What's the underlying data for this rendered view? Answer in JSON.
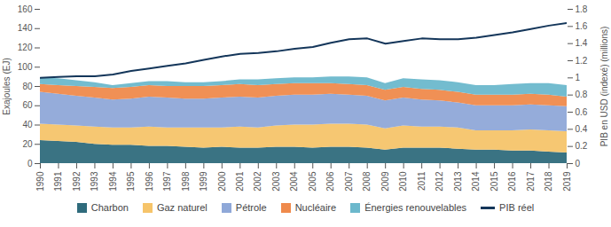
{
  "chart_data": {
    "type": "area",
    "stacked": true,
    "ylabel": "Exajoules (EJ)",
    "y2label": "PIB en USD (indexé) (millions)",
    "x": [
      1990,
      1991,
      1992,
      1993,
      1994,
      1995,
      1996,
      1997,
      1998,
      1999,
      2000,
      2001,
      2002,
      2003,
      2004,
      2005,
      2006,
      2007,
      2008,
      2009,
      2010,
      2011,
      2012,
      2013,
      2014,
      2015,
      2016,
      2017,
      2018,
      2019
    ],
    "xlim": [
      1990,
      2019
    ],
    "xticks": [
      1990,
      1991,
      1992,
      1993,
      1994,
      1995,
      1996,
      1997,
      1998,
      1999,
      2000,
      2001,
      2002,
      2003,
      2004,
      2005,
      2006,
      2007,
      2008,
      2009,
      2010,
      2011,
      2012,
      2013,
      2014,
      2015,
      2016,
      2017,
      2018,
      2019
    ],
    "ylim": [
      0,
      160
    ],
    "yticks": [
      0,
      20,
      40,
      60,
      80,
      100,
      120,
      140,
      160
    ],
    "y2lim": [
      0,
      1.8
    ],
    "y2ticks": [
      0,
      0.2,
      0.4,
      0.6,
      0.8,
      1,
      1.2,
      1.4,
      1.6,
      1.8
    ],
    "legend": "bottom",
    "series": [
      {
        "name": "Charbon",
        "color": "#2f6b7c",
        "values": [
          24,
          23,
          22,
          20,
          19,
          19,
          18,
          18,
          17,
          16,
          17,
          16,
          16,
          17,
          17,
          16,
          17,
          17,
          16,
          14,
          16,
          16,
          16,
          15,
          14,
          14,
          13,
          13,
          12,
          11
        ]
      },
      {
        "name": "Gaz naturel",
        "color": "#f6c46a",
        "values": [
          17,
          17,
          17,
          18,
          18,
          18,
          20,
          19,
          20,
          21,
          20,
          22,
          21,
          22,
          23,
          24,
          24,
          24,
          24,
          22,
          23,
          22,
          22,
          22,
          20,
          20,
          21,
          22,
          22,
          22
        ]
      },
      {
        "name": "Pétrole",
        "color": "#8fa8d8",
        "values": [
          33,
          32,
          31,
          30,
          29,
          30,
          31,
          31,
          30,
          30,
          31,
          31,
          31,
          31,
          31,
          31,
          31,
          30,
          30,
          29,
          29,
          28,
          27,
          26,
          26,
          26,
          26,
          26,
          26,
          26
        ]
      },
      {
        "name": "Nucléaire",
        "color": "#ef8a4c",
        "values": [
          8,
          9,
          10,
          11,
          12,
          12,
          12,
          12,
          13,
          13,
          13,
          13,
          13,
          12,
          12,
          12,
          11,
          11,
          11,
          11,
          11,
          11,
          11,
          11,
          11,
          11,
          11,
          11,
          11,
          10
        ]
      },
      {
        "name": "Énergies renouvelables",
        "color": "#6cb8cc",
        "values": [
          7,
          7,
          6,
          5,
          3,
          4,
          4,
          5,
          4,
          4,
          4,
          5,
          6,
          6,
          6,
          6,
          7,
          8,
          8,
          7,
          9,
          10,
          10,
          10,
          10,
          10,
          11,
          11,
          12,
          12
        ]
      },
      {
        "name": "PIB réel",
        "color": "#14365a",
        "type": "line",
        "axis": "y2",
        "values": [
          1.0,
          1.01,
          1.02,
          1.02,
          1.04,
          1.08,
          1.11,
          1.14,
          1.17,
          1.21,
          1.25,
          1.28,
          1.29,
          1.31,
          1.34,
          1.36,
          1.41,
          1.45,
          1.46,
          1.4,
          1.43,
          1.46,
          1.45,
          1.45,
          1.47,
          1.5,
          1.53,
          1.57,
          1.61,
          1.64
        ]
      }
    ]
  }
}
